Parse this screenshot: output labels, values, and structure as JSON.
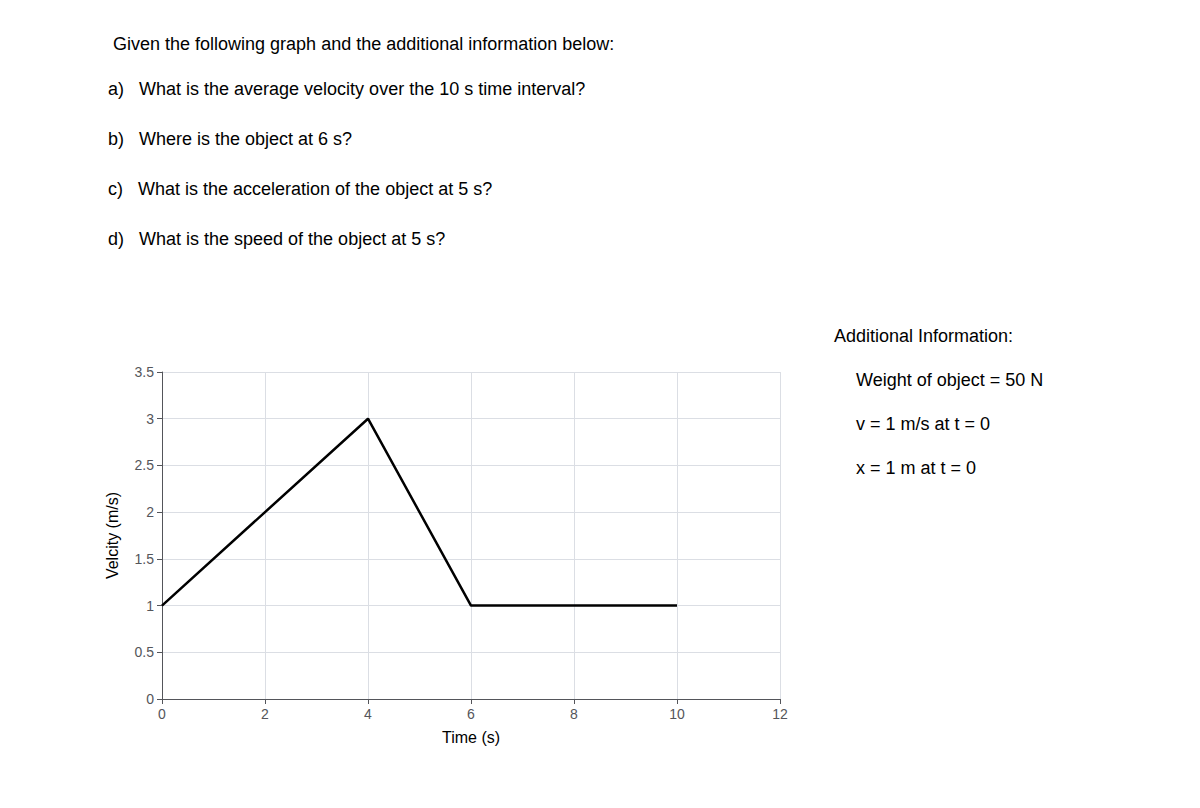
{
  "chart_data": {
    "type": "line",
    "title": "Given the following graph and the additional information below:",
    "annotations": [
      [
        "a)   What is the average velocity over the 10 s time interval?",
        "b)   Where is the object at 6 s?",
        "c)   What is the acceleration of the object at 5 s?",
        "d)   What is the speed of the object at 5 s?"
      ],
      [
        "Additional Information:",
        "Weight of object = 50 N",
        "v = 1 m/s at t = 0",
        "x = 1 m at t = 0"
      ]
    ],
    "x": [
      0,
      4,
      6,
      10
    ],
    "values": [
      1,
      3,
      1,
      1
    ],
    "xlabel": "Time (s)",
    "ylabel": "Velcity (m/s)",
    "xlim": [
      0,
      12
    ],
    "ylim": [
      0,
      3.5
    ],
    "xticks": [
      0,
      2,
      4,
      6,
      8,
      10,
      12
    ],
    "yticks": [
      0,
      0.5,
      1,
      1.5,
      2,
      2.5,
      3,
      3.5
    ],
    "color": "#000000",
    "grid": true
  }
}
